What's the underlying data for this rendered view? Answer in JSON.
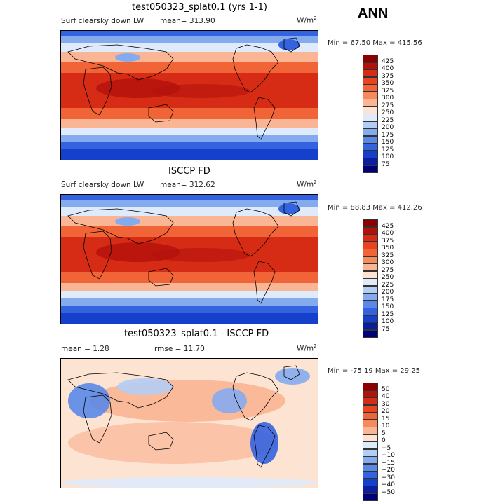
{
  "season": "ANN",
  "panels": [
    {
      "title": "test050323_splat0.1 (yrs 1-1)",
      "variable": "Surf clearsky down LW",
      "stat_text": "mean=  313.90",
      "units": "W/m",
      "units_exp": "2",
      "minmax": "Min =  67.50 Max = 415.56",
      "kind": "abs"
    },
    {
      "title": "ISCCP FD",
      "variable": "Surf clearsky down LW",
      "stat_text": "mean=  312.62",
      "units": "W/m",
      "units_exp": "2",
      "minmax": "Min =  88.83 Max = 412.26",
      "kind": "abs"
    },
    {
      "title": "test050323_splat0.1 - ISCCP FD",
      "variable": "",
      "stat_text": "mean =    1.28",
      "stat_text2": "rmse =   11.70",
      "units": "W/m",
      "units_exp": "2",
      "minmax": "Min = -75.19 Max =  29.25",
      "kind": "diff"
    }
  ],
  "chart_data": [
    {
      "type": "heatmap",
      "title": "test050323_splat0.1 (yrs 1-1)",
      "field": "Surf clearsky down LW",
      "units": "W/m2",
      "mean": 313.9,
      "min": 67.5,
      "max": 415.56,
      "colorbar_levels": [
        425,
        400,
        375,
        350,
        325,
        300,
        275,
        250,
        225,
        200,
        175,
        150,
        125,
        100,
        75
      ],
      "colorbar_colors": [
        "#8b0000",
        "#b3120b",
        "#d62b14",
        "#e8441f",
        "#f06438",
        "#f58a5d",
        "#f9b594",
        "#fde3d2",
        "#dfeafb",
        "#b3cdf5",
        "#85abef",
        "#5a88e8",
        "#3463df",
        "#1540cc",
        "#0a1fa0",
        "#000078"
      ]
    },
    {
      "type": "heatmap",
      "title": "ISCCP FD",
      "field": "Surf clearsky down LW",
      "units": "W/m2",
      "mean": 312.62,
      "min": 88.83,
      "max": 412.26,
      "colorbar_levels": [
        425,
        400,
        375,
        350,
        325,
        300,
        275,
        250,
        225,
        200,
        175,
        150,
        125,
        100,
        75
      ],
      "colorbar_colors": [
        "#8b0000",
        "#b3120b",
        "#d62b14",
        "#e8441f",
        "#f06438",
        "#f58a5d",
        "#f9b594",
        "#fde3d2",
        "#dfeafb",
        "#b3cdf5",
        "#85abef",
        "#5a88e8",
        "#3463df",
        "#1540cc",
        "#0a1fa0",
        "#000078"
      ]
    },
    {
      "type": "heatmap",
      "title": "test050323_splat0.1 - ISCCP FD",
      "units": "W/m2",
      "mean": 1.28,
      "rmse": 11.7,
      "min": -75.19,
      "max": 29.25,
      "colorbar_levels": [
        "50",
        "40",
        "30",
        "20",
        "15",
        "10",
        "5",
        "0",
        "−5",
        "−10",
        "−15",
        "−20",
        "−30",
        "−40",
        "−50"
      ],
      "colorbar_colors": [
        "#8b0000",
        "#b3120b",
        "#d62b14",
        "#e8441f",
        "#f06438",
        "#f58a5d",
        "#f9b594",
        "#fde3d2",
        "#dfeafb",
        "#b3cdf5",
        "#85abef",
        "#5a88e8",
        "#3463df",
        "#1540cc",
        "#0a1fa0",
        "#000078"
      ]
    }
  ]
}
